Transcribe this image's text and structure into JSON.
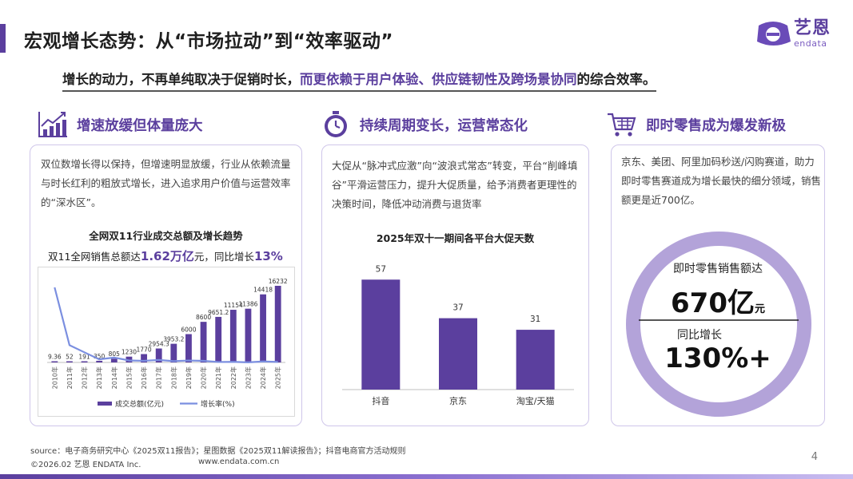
{
  "page": {
    "title": "宏观增长态势：从“市场拉动”到“效率驱动”",
    "subtitle_pre": "增长的动力，不再单纯取决于促销时长，",
    "subtitle_hl": "而更依赖于用户体验、供应链韧性及跨场景协同",
    "subtitle_post": "的综合效率。",
    "page_number": "4",
    "accent_color": "#5b3f9e"
  },
  "logo": {
    "cn": "艺恩",
    "en": "endata"
  },
  "sections": [
    {
      "icon": "growth-chart-icon",
      "title": "增速放缓但体量庞大",
      "text": "双位数增长得以保持，但增速明显放缓，行业从依赖流量与时长红利的粗放式增长，进入追求用户价值与运营效率的“深水区”。"
    },
    {
      "icon": "stopwatch-icon",
      "title": "持续周期变长，运营常态化",
      "text": "大促从“脉冲式应激”向“波浪式常态”转变，平台“削峰填谷”平滑运营压力，提升大促质量，给予消费者更理性的决策时间，降低冲动消费与退货率"
    },
    {
      "icon": "shopping-cart-icon",
      "title": "即时零售成为爆发新极",
      "text": "京东、美团、阿里加码秒送/闪购赛道，助力即时零售赛道成为增长最快的细分领域，销售额更是近700亿。"
    }
  ],
  "chart1_header": {
    "title": "全网双11行业成交总额及增长趋势",
    "sub_pre": "双11全网销售总额达",
    "sub_val1": "1.62万亿",
    "sub_mid": "元，同比增长",
    "sub_val2": "13%"
  },
  "chart2_header": {
    "title": "2025年双十一期间各平台大促天数"
  },
  "highlight": {
    "label1": "即时零售销售额达",
    "value1": "670亿",
    "unit1": "元",
    "label2": "同比增长",
    "value2": "130%+",
    "ring_color": "#b3a3d9"
  },
  "chart_data": [
    {
      "type": "bar",
      "categories": [
        "2010年",
        "2011年",
        "2012年",
        "2013年",
        "2014年",
        "2015年",
        "2016年",
        "2017年",
        "2018年",
        "2019年",
        "2020年",
        "2021年",
        "2022年",
        "2023年",
        "2024年",
        "2025年"
      ],
      "series": [
        {
          "name": "成交总额(亿元)",
          "type": "bar",
          "color": "#5b3f9e",
          "values": [
            9.36,
            52,
            191,
            350,
            805,
            1230,
            1770,
            2954.3,
            3953.2,
            6000,
            8600,
            9651.2,
            11154,
            11386,
            14418,
            16232
          ],
          "labels": [
            "9.36",
            "52",
            "191",
            "350",
            "805",
            "1230",
            "1770",
            "2954.3",
            "3953.2",
            "6000",
            "8600",
            "9651.2",
            "11154",
            "11386",
            "14418",
            "16232"
          ]
        },
        {
          "name": "增长率(%)",
          "type": "line",
          "color": "#7b8fe0",
          "values": [
            2000,
            460,
            270,
            83,
            130,
            53,
            44,
            67,
            34,
            52,
            43,
            12,
            16,
            2,
            27,
            13
          ]
        }
      ],
      "ylim": [
        0,
        16232
      ],
      "legend": "bottom"
    },
    {
      "type": "bar",
      "categories": [
        "抖音",
        "京东",
        "淘宝/天猫"
      ],
      "values": [
        57,
        37,
        31
      ],
      "ylim": [
        0,
        60
      ],
      "color": "#5b3f9e"
    }
  ],
  "footer": {
    "source": "source：电子商务研究中心《2025双11报告》；星图数据《2025双11解读报告》；抖音电商官方活动规则",
    "copyright": "©2026.02 艺恩 ENDATA Inc.",
    "url": "www.endata.com.cn"
  }
}
